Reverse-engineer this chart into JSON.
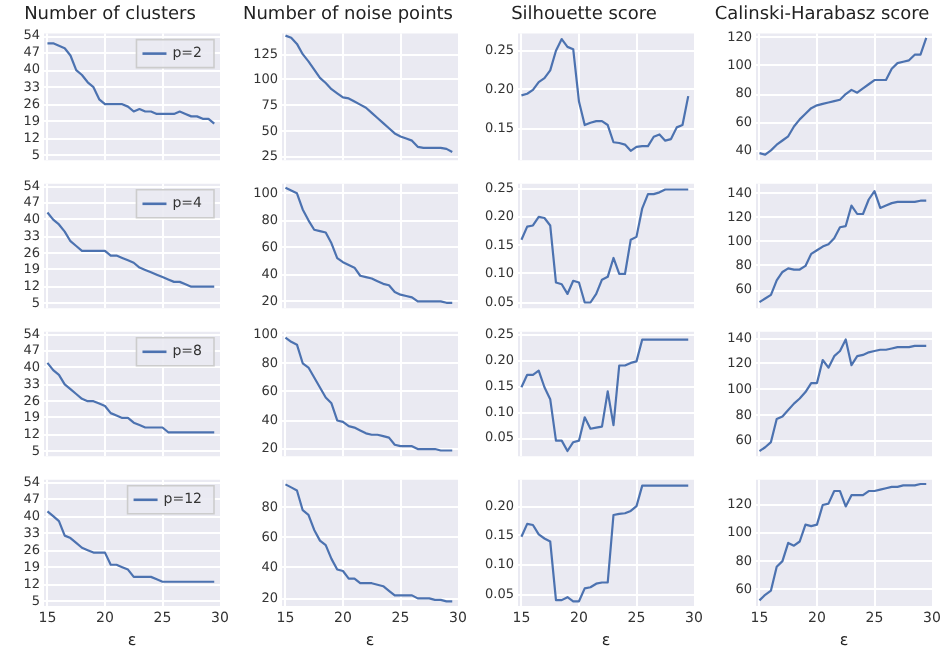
{
  "chart_data": [
    {
      "type": "line",
      "title": "Number of clusters",
      "x": [
        15,
        15.5,
        16,
        16.5,
        17,
        17.5,
        18,
        18.5,
        19,
        19.5,
        20,
        20.5,
        21,
        21.5,
        22,
        22.5,
        23,
        23.5,
        24,
        24.5,
        25,
        25.5,
        26,
        26.5,
        27,
        27.5,
        28,
        28.5,
        29,
        29.5
      ],
      "series": [
        {
          "name": "p=2",
          "color": "#4c72b0",
          "values": [
            51,
            51,
            50,
            49,
            46,
            40,
            38,
            35,
            33,
            28,
            26,
            26,
            26,
            26,
            25,
            23,
            24,
            23,
            23,
            22,
            22,
            22,
            22,
            23,
            22,
            21,
            21,
            20,
            20,
            18
          ]
        }
      ],
      "xlim": [
        14.7,
        30
      ],
      "xticks": [
        15,
        20,
        25,
        30
      ],
      "ylim": [
        3,
        55
      ],
      "yticks": [
        5,
        12,
        19,
        26,
        33,
        40,
        47,
        54
      ],
      "grid": true,
      "legend": "top right",
      "tick_labels": "y"
    },
    {
      "type": "line",
      "title": "Number of noise points",
      "x": [
        15,
        15.5,
        16,
        16.5,
        17,
        17.5,
        18,
        18.5,
        19,
        19.5,
        20,
        20.5,
        21,
        21.5,
        22,
        22.5,
        23,
        23.5,
        24,
        24.5,
        25,
        25.5,
        26,
        26.5,
        27,
        27.5,
        28,
        28.5,
        29,
        29.5
      ],
      "series": [
        {
          "color": "#4c72b0",
          "values": [
            143,
            141,
            135,
            125,
            118,
            110,
            102,
            97,
            91,
            87,
            83,
            82,
            79,
            76,
            73,
            68,
            63,
            58,
            53,
            48,
            45,
            43,
            41,
            35,
            34,
            34,
            34,
            34,
            33,
            30
          ]
        }
      ],
      "xlim": [
        14.7,
        30
      ],
      "xticks": [
        15,
        20,
        25,
        30
      ],
      "ylim": [
        22,
        145
      ],
      "yticks": [
        25,
        50,
        75,
        100,
        125
      ],
      "grid": true,
      "tick_labels": "y"
    },
    {
      "type": "line",
      "title": "Silhouette score",
      "x": [
        15,
        15.5,
        16,
        16.5,
        17,
        17.5,
        18,
        18.5,
        19,
        19.5,
        20,
        20.5,
        21,
        21.5,
        22,
        22.5,
        23,
        23.5,
        24,
        24.5,
        25,
        25.5,
        26,
        26.5,
        27,
        27.5,
        28,
        28.5,
        29,
        29.5
      ],
      "series": [
        {
          "color": "#4c72b0",
          "values": [
            0.193,
            0.195,
            0.2,
            0.21,
            0.215,
            0.225,
            0.25,
            0.265,
            0.255,
            0.252,
            0.185,
            0.155,
            0.158,
            0.16,
            0.16,
            0.155,
            0.133,
            0.132,
            0.13,
            0.122,
            0.127,
            0.128,
            0.128,
            0.14,
            0.143,
            0.135,
            0.137,
            0.152,
            0.155,
            0.192
          ]
        }
      ],
      "xlim": [
        14.7,
        30
      ],
      "xticks": [
        15,
        20,
        25,
        30
      ],
      "ylim": [
        0.11,
        0.272
      ],
      "yticks": [
        {
          "value": 0.15,
          "label": "0.15"
        },
        {
          "value": 0.2,
          "label": "0.20"
        },
        {
          "value": 0.25,
          "label": "0.25"
        }
      ],
      "grid": true,
      "tick_labels": "y"
    },
    {
      "type": "line",
      "title": "Calinski-Harabasz score",
      "x": [
        15,
        15.5,
        16,
        16.5,
        17,
        17.5,
        18,
        18.5,
        19,
        19.5,
        20,
        20.5,
        21,
        21.5,
        22,
        22.5,
        23,
        23.5,
        24,
        24.5,
        25,
        25.5,
        26,
        26.5,
        27,
        27.5,
        28,
        28.5,
        29,
        29.5
      ],
      "series": [
        {
          "color": "#4c72b0",
          "values": [
            38,
            37,
            40,
            44,
            47,
            50,
            57,
            62,
            66,
            70,
            72,
            73,
            74,
            75,
            76,
            80,
            83,
            81,
            84,
            87,
            90,
            90,
            90,
            98,
            102,
            103,
            104,
            108,
            108,
            120
          ]
        }
      ],
      "xlim": [
        14.7,
        30
      ],
      "xticks": [
        15,
        20,
        25,
        30
      ],
      "ylim": [
        33,
        123
      ],
      "yticks": [
        40,
        60,
        80,
        100,
        120
      ],
      "grid": true,
      "tick_labels": "y"
    },
    {
      "type": "line",
      "x": [
        15,
        15.5,
        16,
        16.5,
        17,
        17.5,
        18,
        18.5,
        19,
        19.5,
        20,
        20.5,
        21,
        21.5,
        22,
        22.5,
        23,
        23.5,
        24,
        24.5,
        25,
        25.5,
        26,
        26.5,
        27,
        27.5,
        28,
        28.5,
        29,
        29.5
      ],
      "series": [
        {
          "name": "p=4",
          "color": "#4c72b0",
          "values": [
            43,
            40,
            38,
            35,
            31,
            29,
            27,
            27,
            27,
            27,
            27,
            25,
            25,
            24,
            23,
            22,
            20,
            19,
            18,
            17,
            16,
            15,
            14,
            14,
            13,
            12,
            12,
            12,
            12,
            12
          ]
        }
      ],
      "xlim": [
        14.7,
        30
      ],
      "xticks": [
        15,
        20,
        25,
        30
      ],
      "ylim": [
        3,
        55
      ],
      "yticks": [
        5,
        12,
        19,
        26,
        33,
        40,
        47,
        54
      ],
      "grid": true,
      "legend": "top right",
      "tick_labels": "y"
    },
    {
      "type": "line",
      "x": [
        15,
        15.5,
        16,
        16.5,
        17,
        17.5,
        18,
        18.5,
        19,
        19.5,
        20,
        20.5,
        21,
        21.5,
        22,
        22.5,
        23,
        23.5,
        24,
        24.5,
        25,
        25.5,
        26,
        26.5,
        27,
        27.5,
        28,
        28.5,
        29,
        29.5
      ],
      "series": [
        {
          "color": "#4c72b0",
          "values": [
            104,
            102,
            100,
            88,
            80,
            73,
            72,
            71,
            63,
            52,
            49,
            47,
            45,
            39,
            38,
            37,
            35,
            33,
            32,
            27,
            25,
            24,
            23,
            20,
            20,
            20,
            20,
            20,
            19,
            19
          ]
        }
      ],
      "xlim": [
        14.7,
        30
      ],
      "xticks": [
        15,
        20,
        25,
        30
      ],
      "ylim": [
        15,
        107
      ],
      "yticks": [
        20,
        40,
        60,
        80,
        100
      ],
      "grid": true,
      "tick_labels": "y"
    },
    {
      "type": "line",
      "x": [
        15,
        15.5,
        16,
        16.5,
        17,
        17.5,
        18,
        18.5,
        19,
        19.5,
        20,
        20.5,
        21,
        21.5,
        22,
        22.5,
        23,
        23.5,
        24,
        24.5,
        25,
        25.5,
        26,
        26.5,
        27,
        27.5,
        28,
        28.5,
        29,
        29.5
      ],
      "series": [
        {
          "color": "#4c72b0",
          "values": [
            0.16,
            0.183,
            0.185,
            0.2,
            0.198,
            0.185,
            0.085,
            0.082,
            0.065,
            0.088,
            0.085,
            0.05,
            0.05,
            0.065,
            0.09,
            0.095,
            0.128,
            0.1,
            0.1,
            0.16,
            0.165,
            0.215,
            0.24,
            0.24,
            0.243,
            0.248,
            0.248,
            0.248,
            0.248,
            0.248
          ]
        }
      ],
      "xlim": [
        14.7,
        30
      ],
      "xticks": [
        15,
        20,
        25,
        30
      ],
      "ylim": [
        0.04,
        0.258
      ],
      "yticks": [
        {
          "value": 0.05,
          "label": "0.05"
        },
        {
          "value": 0.1,
          "label": "0.10"
        },
        {
          "value": 0.15,
          "label": "0.15"
        },
        {
          "value": 0.2,
          "label": "0.20"
        },
        {
          "value": 0.25,
          "label": "0.25"
        }
      ],
      "grid": true,
      "tick_labels": "y"
    },
    {
      "type": "line",
      "x": [
        15,
        15.5,
        16,
        16.5,
        17,
        17.5,
        18,
        18.5,
        19,
        19.5,
        20,
        20.5,
        21,
        21.5,
        22,
        22.5,
        23,
        23.5,
        24,
        24.5,
        25,
        25.5,
        26,
        26.5,
        27,
        27.5,
        28,
        28.5,
        29,
        29.5
      ],
      "series": [
        {
          "color": "#4c72b0",
          "values": [
            50,
            53,
            56,
            68,
            75,
            78,
            77,
            77,
            80,
            90,
            93,
            96,
            98,
            103,
            112,
            113,
            130,
            123,
            123,
            135,
            142,
            128,
            130,
            132,
            133,
            133,
            133,
            133,
            134,
            134
          ]
        }
      ],
      "xlim": [
        14.7,
        30
      ],
      "xticks": [
        15,
        20,
        25,
        30
      ],
      "ylim": [
        45,
        148
      ],
      "yticks": [
        60,
        80,
        100,
        120,
        140
      ],
      "grid": true,
      "tick_labels": "y"
    },
    {
      "type": "line",
      "x": [
        15,
        15.5,
        16,
        16.5,
        17,
        17.5,
        18,
        18.5,
        19,
        19.5,
        20,
        20.5,
        21,
        21.5,
        22,
        22.5,
        23,
        23.5,
        24,
        24.5,
        25,
        25.5,
        26,
        26.5,
        27,
        27.5,
        28,
        28.5,
        29,
        29.5
      ],
      "series": [
        {
          "name": "p=8",
          "color": "#4c72b0",
          "values": [
            42,
            39,
            37,
            33,
            31,
            29,
            27,
            26,
            26,
            25,
            24,
            21,
            20,
            19,
            19,
            17,
            16,
            15,
            15,
            15,
            15,
            13,
            13,
            13,
            13,
            13,
            13,
            13,
            13,
            13
          ]
        }
      ],
      "xlim": [
        14.7,
        30
      ],
      "xticks": [
        15,
        20,
        25,
        30
      ],
      "ylim": [
        3,
        55
      ],
      "yticks": [
        5,
        12,
        19,
        26,
        33,
        40,
        47,
        54
      ],
      "grid": true,
      "legend": "top right",
      "tick_labels": "y"
    },
    {
      "type": "line",
      "x": [
        15,
        15.5,
        16,
        16.5,
        17,
        17.5,
        18,
        18.5,
        19,
        19.5,
        20,
        20.5,
        21,
        21.5,
        22,
        22.5,
        23,
        23.5,
        24,
        24.5,
        25,
        25.5,
        26,
        26.5,
        27,
        27.5,
        28,
        28.5,
        29,
        29.5
      ],
      "series": [
        {
          "color": "#4c72b0",
          "values": [
            98,
            95,
            93,
            80,
            77,
            70,
            63,
            56,
            52,
            40,
            39,
            36,
            35,
            33,
            31,
            30,
            30,
            29,
            28,
            23,
            22,
            22,
            22,
            20,
            20,
            20,
            20,
            19,
            19,
            19
          ]
        }
      ],
      "xlim": [
        14.7,
        30
      ],
      "xticks": [
        15,
        20,
        25,
        30
      ],
      "ylim": [
        15,
        102
      ],
      "yticks": [
        20,
        40,
        60,
        80,
        100
      ],
      "grid": true,
      "tick_labels": "y"
    },
    {
      "type": "line",
      "x": [
        15,
        15.5,
        16,
        16.5,
        17,
        17.5,
        18,
        18.5,
        19,
        19.5,
        20,
        20.5,
        21,
        21.5,
        22,
        22.5,
        23,
        23.5,
        24,
        24.5,
        25,
        25.5,
        26,
        26.5,
        27,
        27.5,
        28,
        28.5,
        29,
        29.5
      ],
      "series": [
        {
          "color": "#4c72b0",
          "values": [
            0.148,
            0.172,
            0.172,
            0.18,
            0.148,
            0.125,
            0.045,
            0.045,
            0.025,
            0.042,
            0.045,
            0.09,
            0.068,
            0.07,
            0.072,
            0.14,
            0.075,
            0.19,
            0.19,
            0.195,
            0.198,
            0.24,
            0.24,
            0.24,
            0.24,
            0.24,
            0.24,
            0.24,
            0.24,
            0.24
          ]
        }
      ],
      "xlim": [
        14.7,
        30
      ],
      "xticks": [
        15,
        20,
        25,
        30
      ],
      "ylim": [
        0.015,
        0.255
      ],
      "yticks": [
        {
          "value": 0.05,
          "label": "0.05"
        },
        {
          "value": 0.1,
          "label": "0.10"
        },
        {
          "value": 0.15,
          "label": "0.15"
        },
        {
          "value": 0.2,
          "label": "0.20"
        },
        {
          "value": 0.25,
          "label": "0.25"
        }
      ],
      "grid": true,
      "tick_labels": "y"
    },
    {
      "type": "line",
      "x": [
        15,
        15.5,
        16,
        16.5,
        17,
        17.5,
        18,
        18.5,
        19,
        19.5,
        20,
        20.5,
        21,
        21.5,
        22,
        22.5,
        23,
        23.5,
        24,
        24.5,
        25,
        25.5,
        26,
        26.5,
        27,
        27.5,
        28,
        28.5,
        29,
        29.5
      ],
      "series": [
        {
          "color": "#4c72b0",
          "values": [
            52,
            55,
            59,
            77,
            79,
            84,
            89,
            93,
            98,
            105,
            105,
            123,
            117,
            126,
            130,
            139,
            119,
            126,
            127,
            129,
            130,
            131,
            131,
            132,
            133,
            133,
            133,
            134,
            134,
            134
          ]
        }
      ],
      "xlim": [
        14.7,
        30
      ],
      "xticks": [
        15,
        20,
        25,
        30
      ],
      "ylim": [
        48,
        145
      ],
      "yticks": [
        60,
        80,
        100,
        120,
        140
      ],
      "grid": true,
      "tick_labels": "y"
    },
    {
      "type": "line",
      "xlabel": "ε",
      "x": [
        15,
        15.5,
        16,
        16.5,
        17,
        17.5,
        18,
        18.5,
        19,
        19.5,
        20,
        20.5,
        21,
        21.5,
        22,
        22.5,
        23,
        23.5,
        24,
        24.5,
        25,
        25.5,
        26,
        26.5,
        27,
        27.5,
        28,
        28.5,
        29,
        29.5
      ],
      "series": [
        {
          "name": "p=12",
          "color": "#4c72b0",
          "values": [
            42,
            40,
            38,
            32,
            31,
            29,
            27,
            26,
            25,
            25,
            25,
            20,
            20,
            19,
            18,
            15,
            15,
            15,
            15,
            14,
            13,
            13,
            13,
            13,
            13,
            13,
            13,
            13,
            13,
            13
          ]
        }
      ],
      "xlim": [
        14.7,
        30
      ],
      "xticks": [
        15,
        20,
        25,
        30
      ],
      "ylim": [
        3,
        55
      ],
      "yticks": [
        5,
        12,
        19,
        26,
        33,
        40,
        47,
        54
      ],
      "grid": true,
      "legend": "top right"
    },
    {
      "type": "line",
      "xlabel": "ε",
      "x": [
        15,
        15.5,
        16,
        16.5,
        17,
        17.5,
        18,
        18.5,
        19,
        19.5,
        20,
        20.5,
        21,
        21.5,
        22,
        22.5,
        23,
        23.5,
        24,
        24.5,
        25,
        25.5,
        26,
        26.5,
        27,
        27.5,
        28,
        28.5,
        29,
        29.5
      ],
      "series": [
        {
          "color": "#4c72b0",
          "values": [
            95,
            93,
            91,
            78,
            75,
            65,
            58,
            55,
            46,
            39,
            38,
            33,
            33,
            30,
            30,
            30,
            29,
            28,
            25,
            22,
            22,
            22,
            22,
            20,
            20,
            20,
            19,
            19,
            18,
            18
          ]
        }
      ],
      "xlim": [
        14.7,
        30
      ],
      "xticks": [
        15,
        20,
        25,
        30
      ],
      "ylim": [
        15,
        98
      ],
      "yticks": [
        20,
        40,
        60,
        80
      ],
      "grid": true
    },
    {
      "type": "line",
      "xlabel": "ε",
      "x": [
        15,
        15.5,
        16,
        16.5,
        17,
        17.5,
        18,
        18.5,
        19,
        19.5,
        20,
        20.5,
        21,
        21.5,
        22,
        22.5,
        23,
        23.5,
        24,
        24.5,
        25,
        25.5,
        26,
        26.5,
        27,
        27.5,
        28,
        28.5,
        29,
        29.5
      ],
      "series": [
        {
          "color": "#4c72b0",
          "values": [
            0.148,
            0.17,
            0.168,
            0.152,
            0.145,
            0.14,
            0.04,
            0.04,
            0.045,
            0.038,
            0.038,
            0.06,
            0.062,
            0.068,
            0.07,
            0.07,
            0.185,
            0.187,
            0.188,
            0.192,
            0.2,
            0.235,
            0.235,
            0.235,
            0.235,
            0.235,
            0.235,
            0.235,
            0.235,
            0.235
          ]
        }
      ],
      "xlim": [
        14.7,
        30
      ],
      "xticks": [
        15,
        20,
        25,
        30
      ],
      "ylim": [
        0.03,
        0.245
      ],
      "yticks": [
        {
          "value": 0.05,
          "label": "0.05"
        },
        {
          "value": 0.1,
          "label": "0.10"
        },
        {
          "value": 0.15,
          "label": "0.15"
        },
        {
          "value": 0.2,
          "label": "0.20"
        }
      ],
      "grid": true
    },
    {
      "type": "line",
      "xlabel": "ε",
      "x": [
        15,
        15.5,
        16,
        16.5,
        17,
        17.5,
        18,
        18.5,
        19,
        19.5,
        20,
        20.5,
        21,
        21.5,
        22,
        22.5,
        23,
        23.5,
        24,
        24.5,
        25,
        25.5,
        26,
        26.5,
        27,
        27.5,
        28,
        28.5,
        29,
        29.5
      ],
      "series": [
        {
          "color": "#4c72b0",
          "values": [
            52,
            56,
            59,
            76,
            80,
            93,
            91,
            94,
            106,
            105,
            106,
            120,
            121,
            130,
            130,
            119,
            127,
            127,
            127,
            130,
            130,
            131,
            132,
            133,
            133,
            134,
            134,
            134,
            135,
            135
          ]
        }
      ],
      "xlim": [
        14.7,
        30
      ],
      "xticks": [
        15,
        20,
        25,
        30
      ],
      "ylim": [
        48,
        138
      ],
      "yticks": [
        60,
        80,
        100,
        120
      ],
      "grid": true
    }
  ]
}
